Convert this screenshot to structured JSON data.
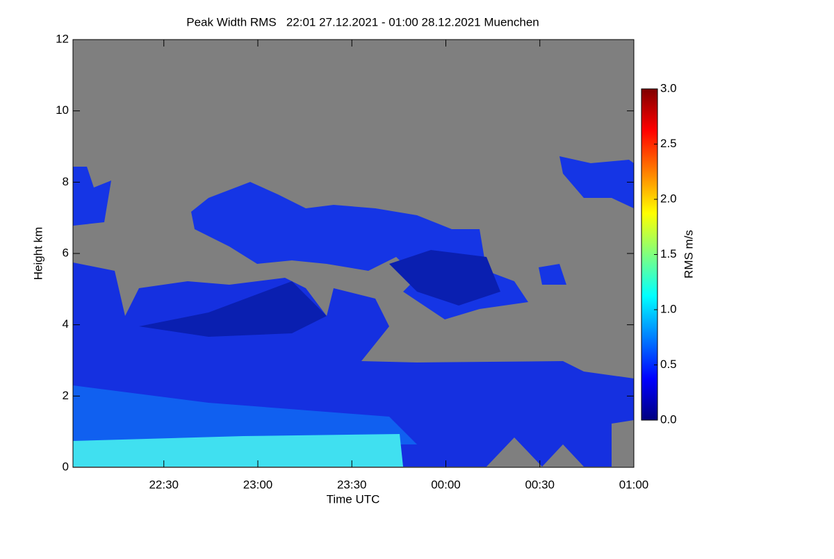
{
  "chart_data": {
    "type": "heatmap",
    "title": "Peak Width RMS   22:01 27.12.2021 - 01:00 28.12.2021 Muenchen",
    "x_label": "Time UTC",
    "y_label": "Height km",
    "xlim": [
      "22:01",
      "01:00"
    ],
    "xticks": [
      "22:30",
      "23:00",
      "23:30",
      "00:00",
      "00:30",
      "01:00"
    ],
    "ylim": [
      0,
      12
    ],
    "yticks": [
      0,
      2,
      4,
      6,
      8,
      10,
      12
    ],
    "colorbar_label": "RMS m/s",
    "zlim": [
      0,
      3
    ],
    "zticks": [
      {
        "value": 0,
        "label": "0.0"
      },
      {
        "value": 0.5,
        "label": "0.5"
      },
      {
        "value": 1,
        "label": "1.0"
      },
      {
        "value": 1.5,
        "label": "1.5"
      },
      {
        "value": 2,
        "label": "2.0"
      },
      {
        "value": 2.5,
        "label": "2.5"
      },
      {
        "value": 3,
        "label": "3.0"
      }
    ],
    "colormap": [
      "#00007f",
      "#0000ff",
      "#007fff",
      "#00ffff",
      "#7fff7f",
      "#ffff00",
      "#ff7f00",
      "#ff0000",
      "#7f0000"
    ],
    "background": "#7f7f7f"
  }
}
